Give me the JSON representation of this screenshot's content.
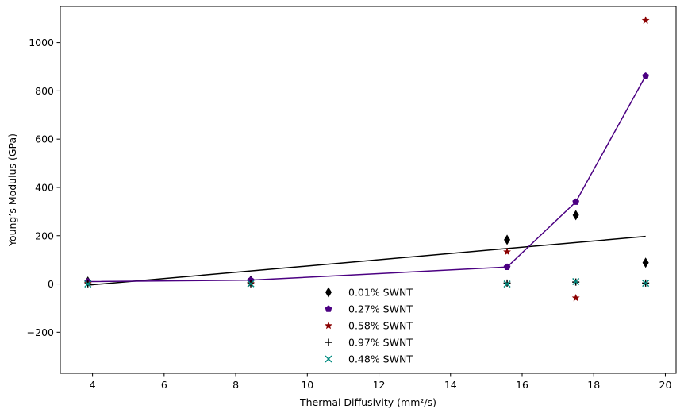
{
  "chart_data": {
    "type": "scatter",
    "title": "",
    "xlabel": "Thermal Diffusivity (mm²/s)",
    "ylabel": "Young’s Modulus (GPa)",
    "xlim": [
      3.1,
      20.3
    ],
    "ylim": [
      -370,
      1150
    ],
    "xticks": [
      4,
      6,
      8,
      10,
      12,
      14,
      16,
      18,
      20
    ],
    "yticks": [
      -200,
      0,
      200,
      400,
      600,
      800,
      1000
    ],
    "xtick_labels": [
      "4",
      "6",
      "8",
      "10",
      "12",
      "14",
      "16",
      "18",
      "20"
    ],
    "ytick_labels": [
      "−200",
      "0",
      "200",
      "400",
      "600",
      "800",
      "1000"
    ],
    "grid": false,
    "legend_position": "lower-center",
    "series": [
      {
        "name": "0.01% SWNT",
        "marker": "diamond",
        "color": "#000000",
        "x": [
          3.87,
          8.42,
          15.58,
          17.5,
          19.45
        ],
        "y": [
          10,
          14,
          183,
          285,
          88
        ]
      },
      {
        "name": "0.27% SWNT",
        "marker": "pentagon",
        "color": "#4b0082",
        "x": [
          3.87,
          8.42,
          15.58,
          17.5,
          19.45
        ],
        "y": [
          10,
          16,
          70,
          340,
          862
        ]
      },
      {
        "name": "0.58% SWNT",
        "marker": "star",
        "color": "#8b0000",
        "x": [
          3.87,
          8.42,
          15.58,
          17.5,
          19.45
        ],
        "y": [
          3,
          2,
          133,
          -58,
          1092
        ]
      },
      {
        "name": "0.97% SWNT",
        "marker": "plus",
        "color": "#000000",
        "x": [
          3.87,
          8.42,
          15.58,
          17.5,
          19.45
        ],
        "y": [
          1,
          1,
          4,
          8,
          4
        ]
      },
      {
        "name": "0.48% SWNT",
        "marker": "x",
        "color": "#008b80",
        "x": [
          3.87,
          8.42,
          15.58,
          17.5,
          19.45
        ],
        "y": [
          0,
          1,
          0,
          10,
          3
        ]
      }
    ],
    "fit_lines": [
      {
        "kind": "linear",
        "color": "#000000",
        "x": [
          3.87,
          19.45
        ],
        "y": [
          -5,
          197
        ]
      },
      {
        "kind": "connected",
        "color": "#4b0082",
        "x": [
          3.87,
          8.42,
          15.58,
          17.5,
          19.45
        ],
        "y": [
          10,
          16,
          70,
          340,
          862
        ]
      }
    ]
  }
}
